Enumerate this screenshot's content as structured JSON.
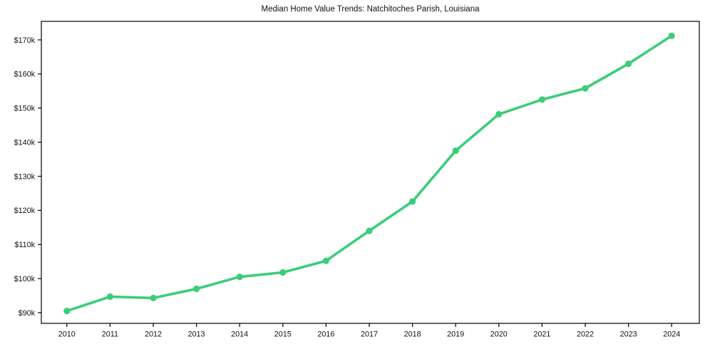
{
  "chart_data": {
    "type": "line",
    "title": "Median Home Value Trends: Natchitoches Parish, Louisiana",
    "x": [
      2010,
      2011,
      2012,
      2013,
      2014,
      2015,
      2016,
      2017,
      2018,
      2019,
      2020,
      2021,
      2022,
      2023,
      2024
    ],
    "values": [
      90500,
      94700,
      94300,
      97000,
      100500,
      101800,
      105200,
      114000,
      122600,
      137500,
      148200,
      152500,
      155800,
      163000,
      171200
    ],
    "xlabel": "",
    "ylabel": "",
    "y_ticks": [
      90000,
      100000,
      110000,
      120000,
      130000,
      140000,
      150000,
      160000,
      170000
    ],
    "y_tick_labels": [
      "$90k",
      "$100k",
      "$110k",
      "$120k",
      "$130k",
      "$140k",
      "$150k",
      "$160k",
      "$170k"
    ],
    "x_tick_labels": [
      "2010",
      "2011",
      "2012",
      "2013",
      "2014",
      "2015",
      "2016",
      "2017",
      "2018",
      "2019",
      "2020",
      "2021",
      "2022",
      "2023",
      "2024"
    ],
    "ylim": [
      86870,
      175430
    ],
    "xlim": [
      2009.41,
      2024.64
    ],
    "grid": false,
    "legend": false,
    "line_color": "#3bcd7a",
    "marker": "circle",
    "marker_color": "#3bcd7a",
    "axis_color": "#000000",
    "background": "#ffffff"
  }
}
